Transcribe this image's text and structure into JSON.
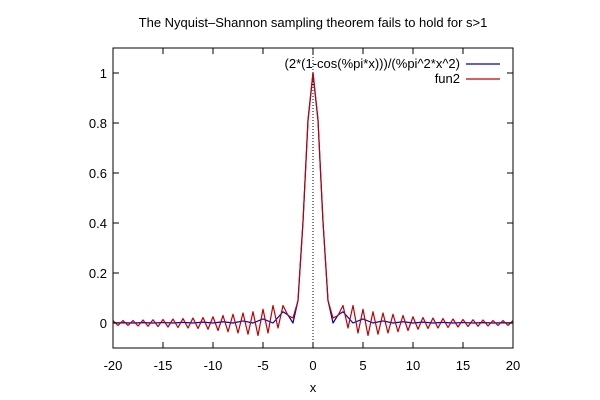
{
  "chart_data": {
    "type": "line",
    "title": "The Nyquist–Shannon sampling theorem fails to hold for s>1",
    "xlabel": "x",
    "ylabel": "",
    "xlim": [
      -20,
      20
    ],
    "ylim": [
      -0.1,
      1.1
    ],
    "x_ticks": [
      -20,
      -15,
      -10,
      -5,
      0,
      5,
      10,
      15,
      20
    ],
    "x_tick_labels": [
      "-20",
      "-15",
      "-10",
      "-5",
      "0",
      "5",
      "10",
      "15",
      "20"
    ],
    "y_ticks": [
      0,
      0.2,
      0.4,
      0.6,
      0.8,
      1
    ],
    "y_tick_labels": [
      "0",
      "0.2",
      "0.4",
      "0.6",
      "0.8",
      "1"
    ],
    "grid": false,
    "zero_axis_x": true,
    "legend_position": "top-right",
    "series": [
      {
        "name": "(2*(1-cos(%pi*x)))/(%pi^2*x^2)",
        "color": "#0000c0",
        "x": [
          -20,
          -19,
          -18,
          -17,
          -16,
          -15,
          -14,
          -13,
          -12,
          -11,
          -10,
          -9,
          -8,
          -7,
          -6,
          -5,
          -4,
          -3,
          -2.5,
          -2,
          -1.5,
          -1,
          -0.5,
          0,
          0.5,
          1,
          1.5,
          2,
          2.5,
          3,
          4,
          5,
          6,
          7,
          8,
          9,
          10,
          11,
          12,
          13,
          14,
          15,
          16,
          17,
          18,
          19,
          20
        ],
        "y": [
          0,
          0.0011,
          0,
          0.0014,
          0,
          0.0018,
          0,
          0.0024,
          0,
          0.0034,
          0,
          0.005,
          0,
          0.0083,
          0,
          0.0162,
          0,
          0.045,
          0.032,
          0,
          0.09,
          0.405,
          0.811,
          1,
          0.811,
          0.405,
          0.09,
          0,
          0.032,
          0.045,
          0,
          0.0162,
          0,
          0.0083,
          0,
          0.005,
          0,
          0.0034,
          0,
          0.0024,
          0,
          0.0018,
          0,
          0.0014,
          0,
          0.0011,
          0
        ]
      },
      {
        "name": "fun2",
        "color": "#c00000",
        "x": [
          -20,
          -19.5,
          -19,
          -18.5,
          -18,
          -17.5,
          -17,
          -16.5,
          -16,
          -15.5,
          -15,
          -14.5,
          -14,
          -13.5,
          -13,
          -12.5,
          -12,
          -11.5,
          -11,
          -10.5,
          -10,
          -9.5,
          -9,
          -8.5,
          -8,
          -7.5,
          -7,
          -6.5,
          -6,
          -5.5,
          -5,
          -4.5,
          -4,
          -3.5,
          -3,
          -2.5,
          -2,
          -1.5,
          -1,
          -0.5,
          0,
          0.5,
          1,
          1.5,
          2,
          2.5,
          3,
          3.5,
          4,
          4.5,
          5,
          5.5,
          6,
          6.5,
          7,
          7.5,
          8,
          8.5,
          9,
          9.5,
          10,
          10.5,
          11,
          11.5,
          12,
          12.5,
          13,
          13.5,
          14,
          14.5,
          15,
          15.5,
          16,
          16.5,
          17,
          17.5,
          18,
          18.5,
          19,
          19.5,
          20
        ],
        "y": [
          0.01,
          -0.01,
          0.01,
          -0.01,
          0.01,
          -0.012,
          0.012,
          -0.013,
          0.013,
          -0.014,
          0.014,
          -0.016,
          0.016,
          -0.018,
          0.018,
          -0.02,
          0.02,
          -0.022,
          0.022,
          -0.025,
          0.025,
          -0.03,
          0.03,
          -0.035,
          0.035,
          -0.04,
          0.04,
          -0.045,
          0.045,
          -0.05,
          0.055,
          -0.04,
          0.07,
          -0.02,
          0.07,
          0.03,
          0.02,
          0.09,
          0.405,
          0.811,
          1,
          0.811,
          0.405,
          0.09,
          0.02,
          0.03,
          0.07,
          -0.02,
          0.07,
          -0.04,
          0.055,
          -0.05,
          0.045,
          -0.045,
          0.04,
          -0.04,
          0.035,
          -0.035,
          0.03,
          -0.03,
          0.025,
          -0.025,
          0.022,
          -0.022,
          0.02,
          -0.02,
          0.018,
          -0.018,
          0.016,
          -0.016,
          0.014,
          -0.014,
          0.013,
          -0.013,
          0.012,
          -0.012,
          0.01,
          -0.01,
          0.01,
          -0.01,
          0.01
        ]
      }
    ]
  }
}
